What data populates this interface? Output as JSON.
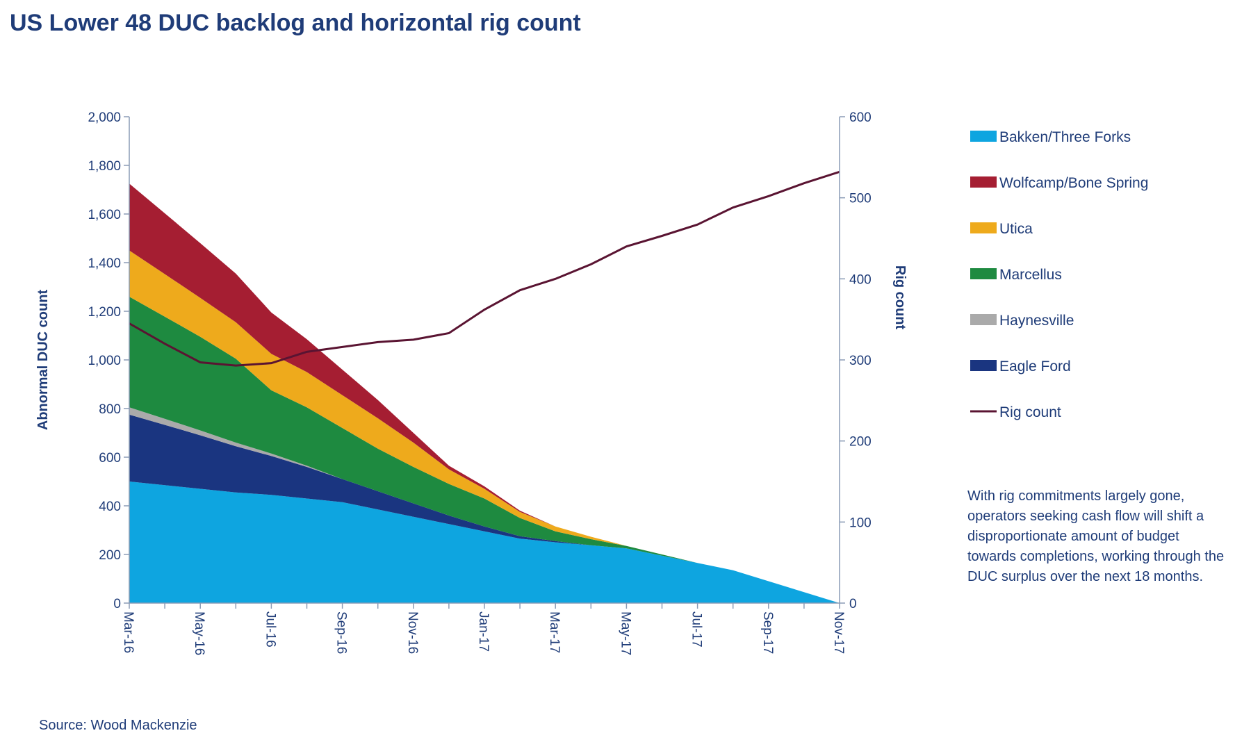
{
  "title": "US Lower 48 DUC backlog and horizontal rig count",
  "source": "Source: Wood Mackenzie",
  "annotation": "With rig commitments largely gone, operators seeking cash flow will shift a disproportionate amount of budget towards completions, working through the DUC surplus over the next 18 months.",
  "chart_data": {
    "type": "area",
    "stacked": true,
    "x": [
      "Mar-16",
      "Apr-16",
      "May-16",
      "Jun-16",
      "Jul-16",
      "Aug-16",
      "Sep-16",
      "Oct-16",
      "Nov-16",
      "Dec-16",
      "Jan-17",
      "Feb-17",
      "Mar-17",
      "Apr-17",
      "May-17",
      "Jun-17",
      "Jul-17",
      "Aug-17",
      "Sep-17",
      "Oct-17",
      "Nov-17"
    ],
    "x_tick_labels": [
      "Mar-16",
      "May-16",
      "Jul-16",
      "Sep-16",
      "Nov-16",
      "Jan-17",
      "Mar-17",
      "May-17",
      "Jul-17",
      "Sep-17",
      "Nov-17"
    ],
    "ylabel": "Abnormal DUC count",
    "ylim": [
      0,
      2000
    ],
    "yticks": [
      0,
      200,
      400,
      600,
      800,
      1000,
      1200,
      1400,
      1600,
      1800,
      2000
    ],
    "y2label": "Rig count",
    "y2lim": [
      0,
      600
    ],
    "y2ticks": [
      0,
      100,
      200,
      300,
      400,
      500,
      600
    ],
    "series": [
      {
        "name": "Bakken/Three Forks",
        "color": "#0ea5e0",
        "values": [
          500,
          485,
          470,
          455,
          445,
          430,
          415,
          385,
          355,
          325,
          295,
          265,
          250,
          238,
          225,
          195,
          165,
          135,
          90,
          45,
          0
        ]
      },
      {
        "name": "Eagle Ford",
        "color": "#1a3580",
        "values": [
          275,
          248,
          220,
          190,
          160,
          130,
          95,
          75,
          55,
          35,
          20,
          10,
          5,
          0,
          0,
          0,
          0,
          0,
          0,
          0,
          0
        ]
      },
      {
        "name": "Haynesville",
        "color": "#aaaaaa",
        "values": [
          30,
          25,
          20,
          15,
          10,
          5,
          0,
          0,
          0,
          0,
          0,
          0,
          0,
          0,
          0,
          0,
          0,
          0,
          0,
          0,
          0
        ]
      },
      {
        "name": "Marcellus",
        "color": "#1e8a40",
        "values": [
          455,
          420,
          385,
          345,
          260,
          240,
          210,
          175,
          150,
          130,
          115,
          75,
          40,
          25,
          10,
          5,
          0,
          0,
          0,
          0,
          0
        ]
      },
      {
        "name": "Utica",
        "color": "#eeaa1c",
        "values": [
          190,
          175,
          160,
          150,
          150,
          145,
          135,
          125,
          100,
          60,
          40,
          25,
          20,
          10,
          0,
          0,
          0,
          0,
          0,
          0,
          0
        ]
      },
      {
        "name": "Wolfcamp/Bone Spring",
        "color": "#a51e32",
        "values": [
          275,
          250,
          225,
          200,
          170,
          135,
          105,
          75,
          40,
          15,
          10,
          5,
          0,
          0,
          0,
          0,
          0,
          0,
          0,
          0,
          0
        ]
      }
    ],
    "line_series": {
      "name": "Rig count",
      "color": "#5a1432",
      "axis": "right",
      "values": [
        345,
        320,
        297,
        293,
        296,
        310,
        316,
        322,
        325,
        333,
        362,
        386,
        400,
        418,
        440,
        453,
        467,
        488,
        502,
        518,
        532
      ]
    },
    "legend": [
      {
        "label": "Bakken/Three Forks",
        "color": "#0ea5e0",
        "kind": "box"
      },
      {
        "label": "Wolfcamp/Bone Spring",
        "color": "#a51e32",
        "kind": "box"
      },
      {
        "label": "Utica",
        "color": "#eeaa1c",
        "kind": "box"
      },
      {
        "label": "Marcellus",
        "color": "#1e8a40",
        "kind": "box"
      },
      {
        "label": "Haynesville",
        "color": "#aaaaaa",
        "kind": "box"
      },
      {
        "label": "Eagle Ford",
        "color": "#1a3580",
        "kind": "box"
      },
      {
        "label": "Rig count",
        "color": "#5a1432",
        "kind": "line"
      }
    ],
    "legend_position": "right",
    "grid": false
  }
}
